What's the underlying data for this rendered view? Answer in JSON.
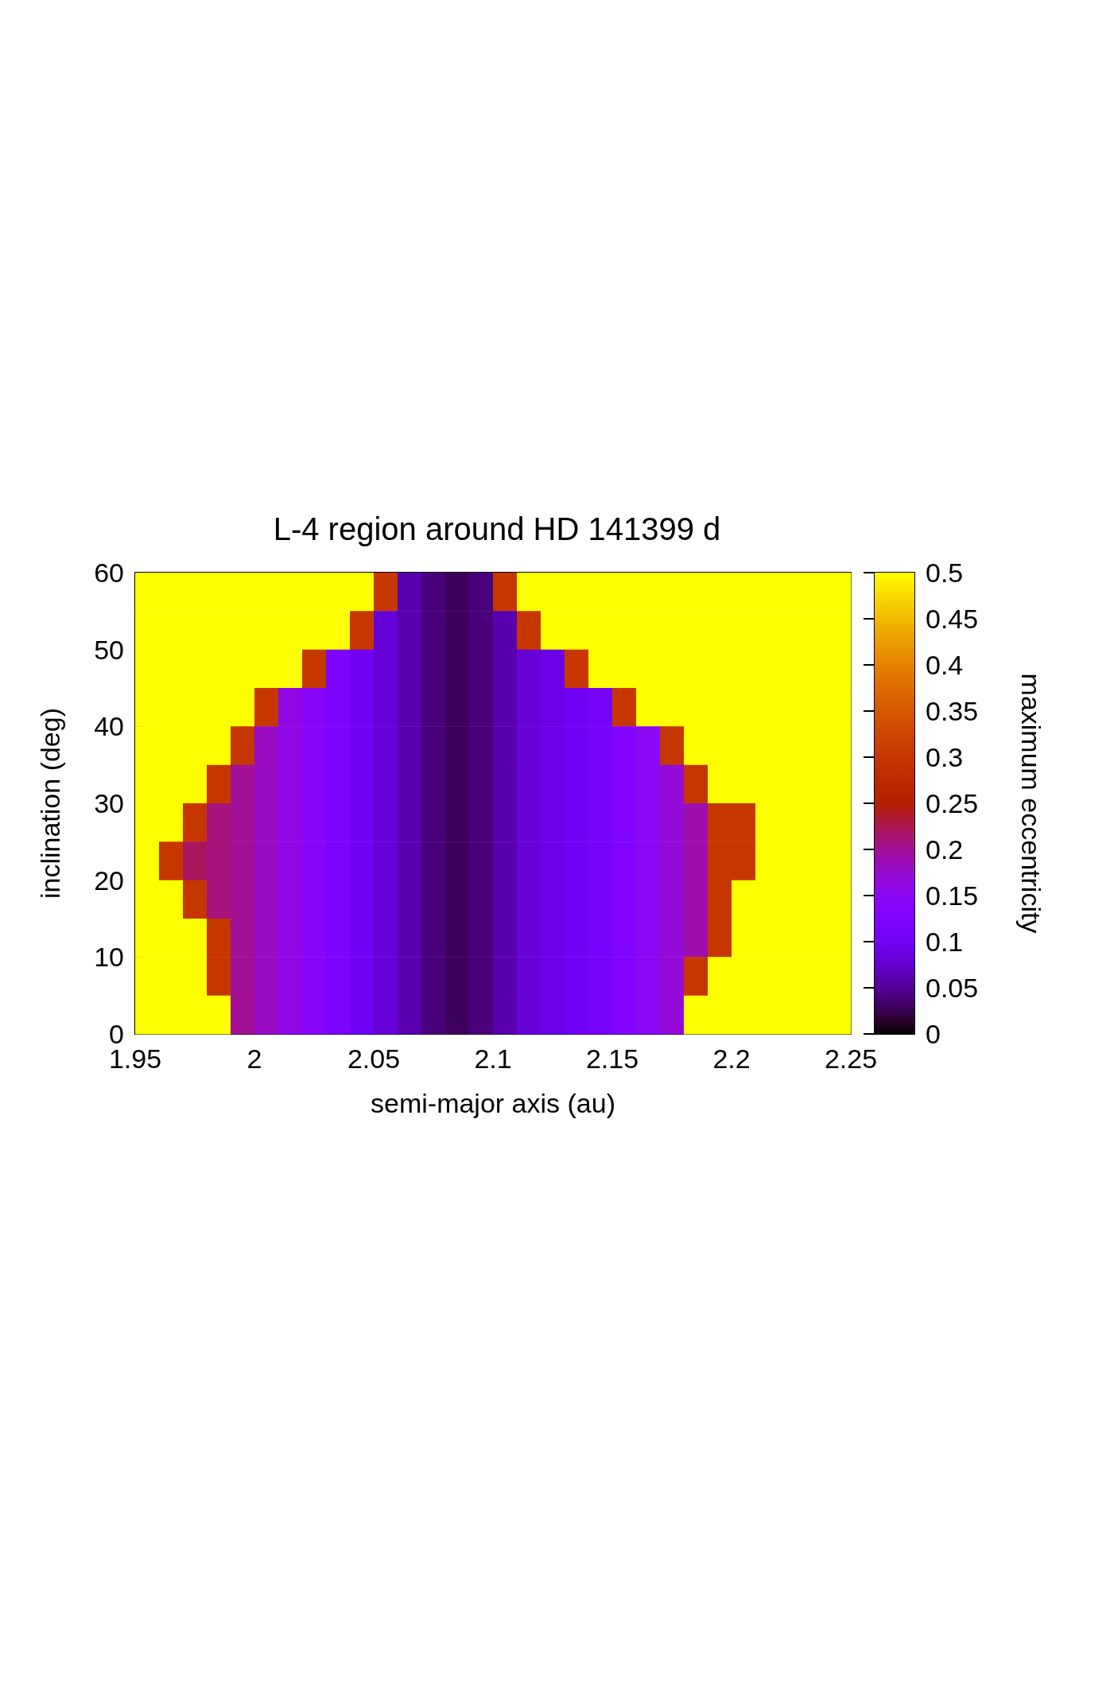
{
  "chart_data": {
    "type": "heatmap",
    "title": "L-4 region around HD 141399 d",
    "xlabel": "semi-major axis (au)",
    "ylabel": "inclination (deg)",
    "clabel": "maximum eccentricity",
    "x": [
      1.955,
      1.965,
      1.975,
      1.985,
      1.995,
      2.005,
      2.015,
      2.025,
      2.035,
      2.045,
      2.055,
      2.065,
      2.075,
      2.085,
      2.095,
      2.105,
      2.115,
      2.125,
      2.135,
      2.145,
      2.155,
      2.165,
      2.175,
      2.185,
      2.195,
      2.205,
      2.215,
      2.225,
      2.235,
      2.245
    ],
    "y": [
      57.5,
      52.5,
      47.5,
      42.5,
      37.5,
      32.5,
      27.5,
      22.5,
      17.5,
      12.5,
      7.5,
      2.5
    ],
    "cells": [
      [
        0.5,
        0.5,
        0.5,
        0.5,
        0.5,
        0.5,
        0.5,
        0.5,
        0.5,
        0.5,
        0.3,
        0.06,
        0.04,
        0.03,
        0.04,
        0.3,
        0.5,
        0.5,
        0.5,
        0.5,
        0.5,
        0.5,
        0.5,
        0.5,
        0.5,
        0.5,
        0.5,
        0.5,
        0.5,
        0.5
      ],
      [
        0.5,
        0.5,
        0.5,
        0.5,
        0.5,
        0.5,
        0.5,
        0.5,
        0.5,
        0.3,
        0.08,
        0.06,
        0.04,
        0.03,
        0.04,
        0.06,
        0.3,
        0.5,
        0.5,
        0.5,
        0.5,
        0.5,
        0.5,
        0.5,
        0.5,
        0.5,
        0.5,
        0.5,
        0.5,
        0.5
      ],
      [
        0.5,
        0.5,
        0.5,
        0.5,
        0.5,
        0.5,
        0.5,
        0.3,
        0.12,
        0.1,
        0.08,
        0.06,
        0.04,
        0.03,
        0.04,
        0.06,
        0.08,
        0.09,
        0.3,
        0.5,
        0.5,
        0.5,
        0.5,
        0.5,
        0.5,
        0.5,
        0.5,
        0.5,
        0.5,
        0.5
      ],
      [
        0.5,
        0.5,
        0.5,
        0.5,
        0.5,
        0.3,
        0.16,
        0.14,
        0.12,
        0.1,
        0.08,
        0.06,
        0.04,
        0.03,
        0.04,
        0.06,
        0.08,
        0.09,
        0.1,
        0.11,
        0.3,
        0.5,
        0.5,
        0.5,
        0.5,
        0.5,
        0.5,
        0.5,
        0.5,
        0.5
      ],
      [
        0.5,
        0.5,
        0.5,
        0.5,
        0.3,
        0.18,
        0.16,
        0.14,
        0.12,
        0.1,
        0.08,
        0.06,
        0.04,
        0.03,
        0.04,
        0.06,
        0.08,
        0.09,
        0.1,
        0.11,
        0.13,
        0.15,
        0.3,
        0.5,
        0.5,
        0.5,
        0.5,
        0.5,
        0.5,
        0.5
      ],
      [
        0.5,
        0.5,
        0.5,
        0.3,
        0.2,
        0.18,
        0.16,
        0.14,
        0.12,
        0.1,
        0.08,
        0.06,
        0.04,
        0.03,
        0.04,
        0.06,
        0.08,
        0.09,
        0.1,
        0.11,
        0.13,
        0.15,
        0.17,
        0.3,
        0.5,
        0.5,
        0.5,
        0.5,
        0.5,
        0.5
      ],
      [
        0.5,
        0.5,
        0.3,
        0.21,
        0.2,
        0.18,
        0.16,
        0.14,
        0.12,
        0.1,
        0.08,
        0.06,
        0.04,
        0.03,
        0.04,
        0.06,
        0.08,
        0.09,
        0.1,
        0.11,
        0.13,
        0.15,
        0.17,
        0.19,
        0.3,
        0.3,
        0.5,
        0.5,
        0.5,
        0.5
      ],
      [
        0.5,
        0.3,
        0.22,
        0.21,
        0.2,
        0.18,
        0.16,
        0.14,
        0.12,
        0.1,
        0.08,
        0.06,
        0.04,
        0.03,
        0.04,
        0.06,
        0.08,
        0.09,
        0.1,
        0.11,
        0.13,
        0.15,
        0.17,
        0.19,
        0.3,
        0.3,
        0.5,
        0.5,
        0.5,
        0.5
      ],
      [
        0.5,
        0.5,
        0.3,
        0.21,
        0.2,
        0.18,
        0.16,
        0.14,
        0.12,
        0.1,
        0.08,
        0.06,
        0.04,
        0.03,
        0.04,
        0.06,
        0.08,
        0.09,
        0.1,
        0.11,
        0.13,
        0.15,
        0.17,
        0.19,
        0.3,
        0.5,
        0.5,
        0.5,
        0.5,
        0.5
      ],
      [
        0.5,
        0.5,
        0.5,
        0.3,
        0.2,
        0.18,
        0.16,
        0.14,
        0.12,
        0.1,
        0.08,
        0.06,
        0.04,
        0.03,
        0.04,
        0.06,
        0.08,
        0.09,
        0.1,
        0.11,
        0.13,
        0.15,
        0.17,
        0.19,
        0.3,
        0.5,
        0.5,
        0.5,
        0.5,
        0.5
      ],
      [
        0.5,
        0.5,
        0.5,
        0.3,
        0.2,
        0.18,
        0.16,
        0.14,
        0.12,
        0.1,
        0.08,
        0.06,
        0.04,
        0.03,
        0.04,
        0.06,
        0.08,
        0.09,
        0.1,
        0.11,
        0.13,
        0.15,
        0.17,
        0.3,
        0.5,
        0.5,
        0.5,
        0.5,
        0.5,
        0.5
      ],
      [
        0.5,
        0.5,
        0.5,
        0.5,
        0.2,
        0.18,
        0.16,
        0.14,
        0.12,
        0.1,
        0.08,
        0.06,
        0.04,
        0.03,
        0.04,
        0.06,
        0.08,
        0.09,
        0.1,
        0.11,
        0.13,
        0.15,
        0.17,
        0.5,
        0.5,
        0.5,
        0.5,
        0.5,
        0.5,
        0.5
      ]
    ],
    "xlim": [
      1.95,
      2.25
    ],
    "xticks": [
      1.95,
      2,
      2.05,
      2.1,
      2.15,
      2.2,
      2.25
    ],
    "ylim": [
      0,
      60
    ],
    "yticks": [
      0,
      10,
      20,
      30,
      40,
      50,
      60
    ],
    "clim": [
      0,
      0.5
    ],
    "cticks": [
      0,
      0.05,
      0.1,
      0.15,
      0.2,
      0.25,
      0.3,
      0.35,
      0.4,
      0.45,
      0.5
    ]
  }
}
